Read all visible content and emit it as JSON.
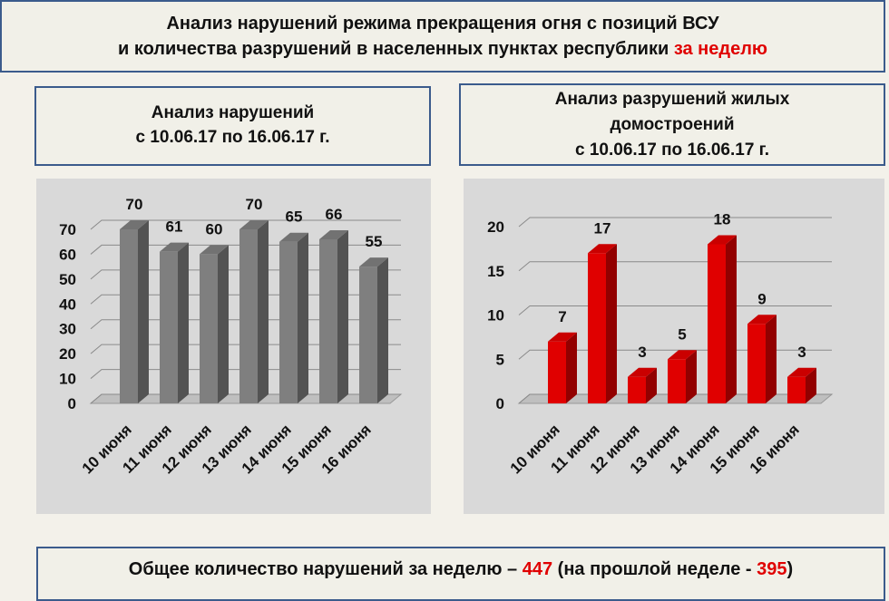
{
  "header": {
    "title": [
      "Анализ нарушений режима прекращения огня с позиций ВСУ",
      "и количества разрушений в населенных пунктах республики"
    ],
    "title_highlight": "за неделю"
  },
  "chart_data": [
    {
      "type": "bar",
      "title": [
        "Анализ нарушений",
        "с 10.06.17 по 16.06.17 г."
      ],
      "categories": [
        "10 июня",
        "11 июня",
        "12 июня",
        "13 июня",
        "14 июня",
        "15 июня",
        "16 июня"
      ],
      "values": [
        70,
        61,
        60,
        70,
        65,
        66,
        55
      ],
      "color": "#7f7f7f",
      "ylim": [
        0,
        70
      ],
      "yticks": [
        0,
        10,
        20,
        30,
        40,
        50,
        60,
        70
      ],
      "grid": true
    },
    {
      "type": "bar",
      "title": [
        "Анализ разрушений жилых",
        "домостроений",
        "с 10.06.17 по 16.06.17 г."
      ],
      "categories": [
        "10 июня",
        "11 июня",
        "12 июня",
        "13 июня",
        "14 июня",
        "15 июня",
        "16 июня"
      ],
      "values": [
        7,
        17,
        3,
        5,
        18,
        9,
        3
      ],
      "color": "#e00000",
      "ylim": [
        0,
        20
      ],
      "yticks": [
        0,
        5,
        10,
        15,
        20
      ],
      "grid": true
    }
  ],
  "summary": {
    "text": "Общее количество нарушений за неделю –",
    "value": 447,
    "text_previous": "(на прошлой неделе -",
    "previous": 395,
    "text_end": ")"
  }
}
